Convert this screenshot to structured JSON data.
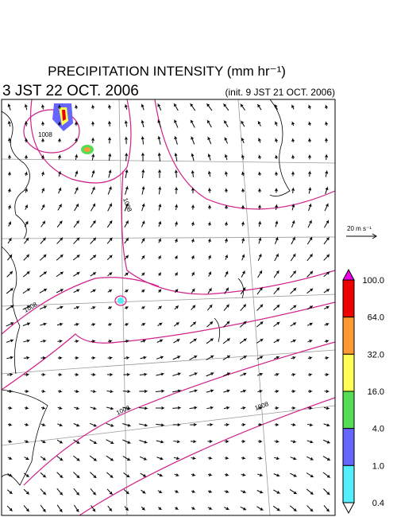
{
  "header": {
    "title": "PRECIPITATION INTENSITY (mm hr⁻¹)",
    "valid_time": "3 JST 22 OCT. 2006",
    "init_time": "(init. 9 JST 21 OCT. 2006)"
  },
  "wind_scale": {
    "label": "20 m s⁻¹"
  },
  "contour_labels": [
    "1008",
    "1008",
    "1008",
    "1008",
    "1008"
  ],
  "colorbar": {
    "colors": [
      "#ee00ee",
      "#ee0000",
      "#ff9933",
      "#ffff55",
      "#55dd55",
      "#6666ff",
      "#55eeff",
      "#ffffff"
    ],
    "labels": [
      "100.0",
      "64.0",
      "32.0",
      "16.0",
      "4.0",
      "1.0",
      "0.4"
    ]
  }
}
